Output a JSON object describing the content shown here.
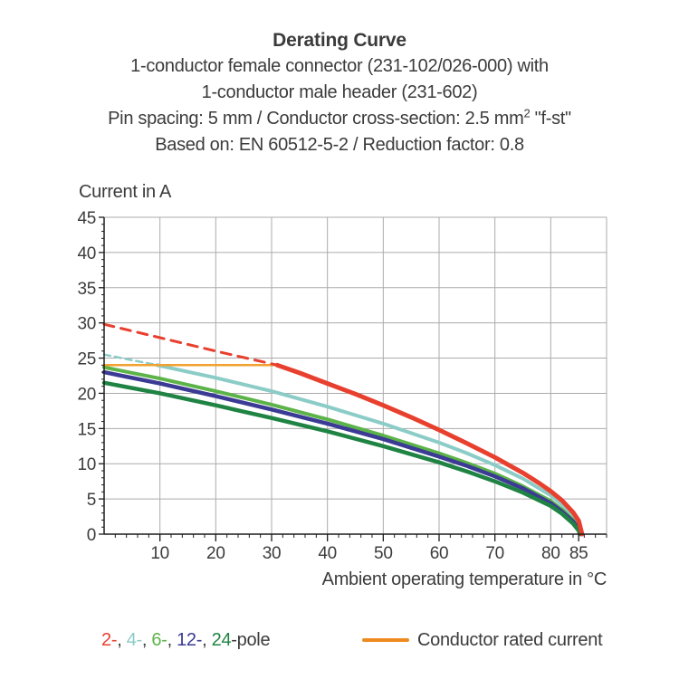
{
  "header": {
    "title": "Derating Curve",
    "line2": "1-conductor female connector (231-102/026-000) with",
    "line3": "1-conductor male header (231-602)",
    "line4_pre": "Pin spacing: 5 mm / Conductor cross-section: 2.5 mm",
    "line4_sup": "2",
    "line4_post": " \"f-st\"",
    "line5": "Based on: EN 60512-5-2 / Reduction factor: 0.8"
  },
  "chart_data": {
    "type": "line",
    "title": "Derating Curve",
    "xlabel": "Ambient operating temperature in °C",
    "ylabel": "Current in A",
    "xlim": [
      0,
      90
    ],
    "ylim": [
      0,
      45
    ],
    "x_major_ticks": [
      10,
      20,
      30,
      40,
      50,
      60,
      70,
      80,
      85
    ],
    "y_major_ticks": [
      0,
      5,
      10,
      15,
      20,
      25,
      30,
      35,
      40,
      45
    ],
    "x_minor_step": 2,
    "y_minor_step": 1,
    "grid": true,
    "grid_color": "#ababab",
    "axis_color": "#1c1c1c",
    "legend_position": "bottom",
    "series": [
      {
        "id": "4-pole-dashed",
        "name": "4-pole (above rated current)",
        "color": "#8bccc7",
        "width": 2.5,
        "dash": "7 5",
        "points": [
          [
            0,
            25.5
          ],
          [
            9.5,
            24.0
          ]
        ]
      },
      {
        "id": "4-pole",
        "name": "4-pole",
        "color": "#8bccc7",
        "width": 4,
        "points": [
          [
            9.5,
            24.0
          ],
          [
            20,
            22.2
          ],
          [
            30,
            20.3
          ],
          [
            40,
            18.1
          ],
          [
            50,
            15.7
          ],
          [
            60,
            13.0
          ],
          [
            65,
            11.5
          ],
          [
            70,
            9.8
          ],
          [
            75,
            7.9
          ],
          [
            80,
            5.5
          ],
          [
            82,
            4.2
          ],
          [
            84,
            2.6
          ],
          [
            85,
            1.4
          ],
          [
            85.5,
            0
          ]
        ]
      },
      {
        "id": "6-pole",
        "name": "6-pole",
        "color": "#5cb348",
        "width": 4,
        "points": [
          [
            0,
            23.7
          ],
          [
            10,
            22.1
          ],
          [
            20,
            20.3
          ],
          [
            30,
            18.4
          ],
          [
            40,
            16.3
          ],
          [
            50,
            14.0
          ],
          [
            60,
            11.5
          ],
          [
            65,
            10.1
          ],
          [
            70,
            8.6
          ],
          [
            75,
            6.8
          ],
          [
            80,
            4.7
          ],
          [
            82,
            3.5
          ],
          [
            84,
            2.0
          ],
          [
            85,
            0.9
          ],
          [
            85.4,
            0
          ]
        ]
      },
      {
        "id": "12-pole",
        "name": "12-pole",
        "color": "#3b3a94",
        "width": 4.5,
        "points": [
          [
            0,
            23.0
          ],
          [
            10,
            21.4
          ],
          [
            20,
            19.6
          ],
          [
            30,
            17.7
          ],
          [
            40,
            15.7
          ],
          [
            50,
            13.5
          ],
          [
            60,
            11.0
          ],
          [
            65,
            9.7
          ],
          [
            70,
            8.2
          ],
          [
            75,
            6.5
          ],
          [
            80,
            4.4
          ],
          [
            82,
            3.2
          ],
          [
            84,
            1.8
          ],
          [
            85,
            0.7
          ],
          [
            85.3,
            0
          ]
        ]
      },
      {
        "id": "24-pole",
        "name": "24-pole",
        "color": "#1f8343",
        "width": 4.5,
        "points": [
          [
            0,
            21.5
          ],
          [
            10,
            20.0
          ],
          [
            20,
            18.3
          ],
          [
            30,
            16.5
          ],
          [
            40,
            14.6
          ],
          [
            50,
            12.5
          ],
          [
            60,
            10.2
          ],
          [
            65,
            8.9
          ],
          [
            70,
            7.5
          ],
          [
            75,
            5.9
          ],
          [
            80,
            4.0
          ],
          [
            82,
            2.9
          ],
          [
            84,
            1.5
          ],
          [
            85,
            0.5
          ],
          [
            85.2,
            0
          ]
        ]
      },
      {
        "id": "conductor-rated-current",
        "name": "Conductor rated current",
        "color": "#f2a12f",
        "width": 2.5,
        "points": [
          [
            0,
            24
          ],
          [
            31,
            24
          ]
        ]
      },
      {
        "id": "2-pole-dashed",
        "name": "2-pole (above rated current)",
        "color": "#e8402e",
        "width": 3,
        "dash": "11 8",
        "points": [
          [
            0,
            29.8
          ],
          [
            10,
            27.9
          ],
          [
            20,
            26.0
          ],
          [
            31,
            24.0
          ]
        ]
      },
      {
        "id": "2-pole",
        "name": "2-pole",
        "color": "#e8402e",
        "width": 5,
        "points": [
          [
            31,
            24.0
          ],
          [
            35,
            22.9
          ],
          [
            40,
            21.4
          ],
          [
            45,
            19.9
          ],
          [
            50,
            18.3
          ],
          [
            55,
            16.6
          ],
          [
            60,
            14.8
          ],
          [
            65,
            12.9
          ],
          [
            70,
            10.9
          ],
          [
            75,
            8.7
          ],
          [
            78,
            7.2
          ],
          [
            80,
            6.1
          ],
          [
            82,
            4.8
          ],
          [
            84,
            3.1
          ],
          [
            85,
            1.9
          ],
          [
            85.6,
            0
          ]
        ]
      }
    ]
  },
  "legend": {
    "pole_parts": [
      {
        "text": "2-",
        "color": "#e8402e"
      },
      {
        "text": ", ",
        "color": "#3b3b3b"
      },
      {
        "text": "4-",
        "color": "#8bccc7"
      },
      {
        "text": ", ",
        "color": "#3b3b3b"
      },
      {
        "text": "6-",
        "color": "#5cb348"
      },
      {
        "text": ", ",
        "color": "#3b3b3b"
      },
      {
        "text": "12-",
        "color": "#3b3a94"
      },
      {
        "text": ", ",
        "color": "#3b3b3b"
      },
      {
        "text": "24",
        "color": "#1f8343"
      },
      {
        "text": "-pole",
        "color": "#3b3b3b"
      }
    ],
    "rated_color": "#ee8a1f",
    "rated_label": "Conductor rated current"
  }
}
